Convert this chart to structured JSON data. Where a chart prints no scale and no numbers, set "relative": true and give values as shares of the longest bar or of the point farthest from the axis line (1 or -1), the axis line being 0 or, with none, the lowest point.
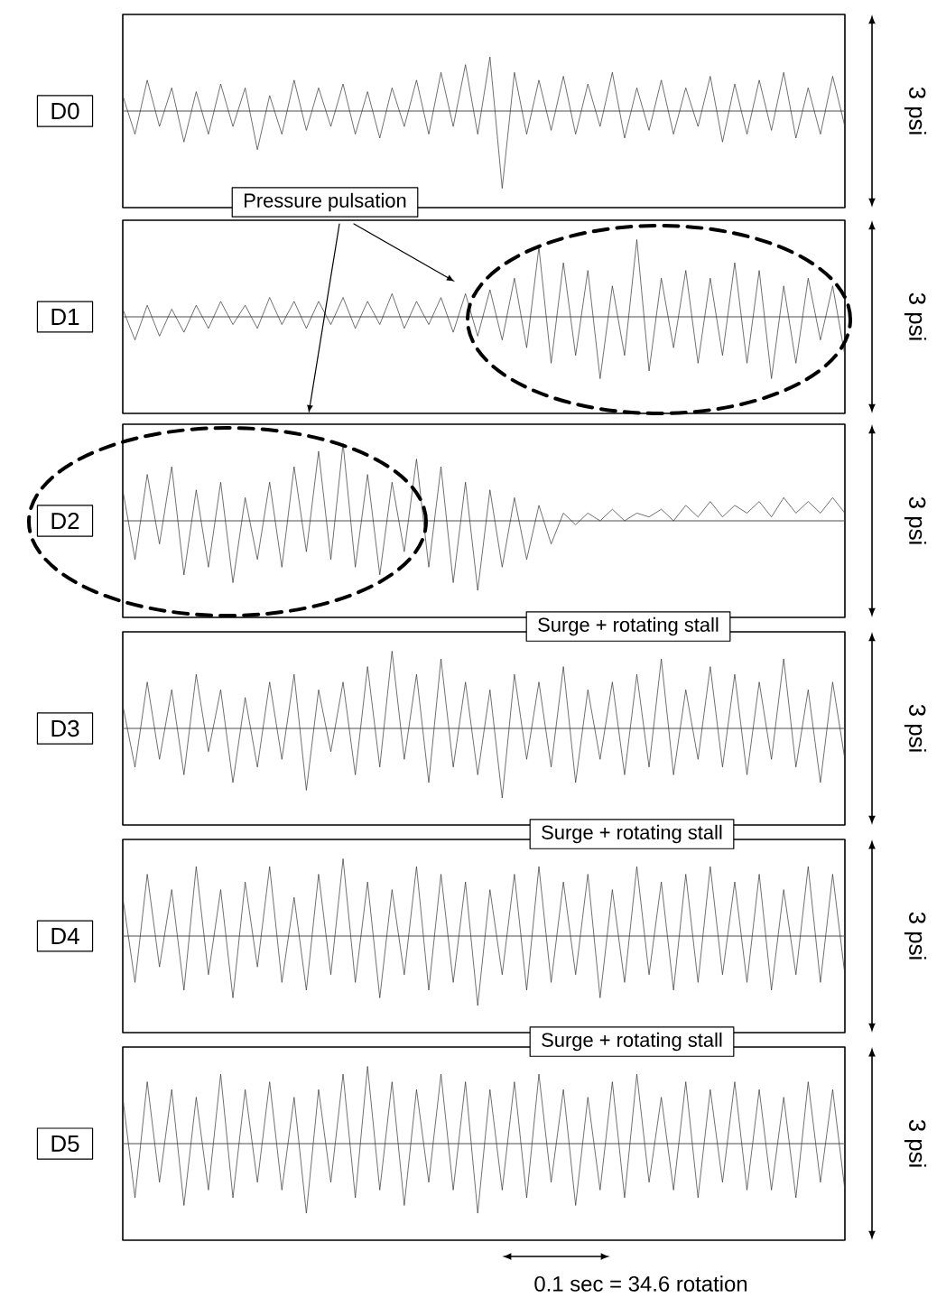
{
  "chart_data": [
    {
      "type": "line",
      "relative": true,
      "title": "D0",
      "y2label": "3 psi",
      "categories": [
        null,
        null,
        null,
        null,
        null,
        null,
        null,
        null,
        null,
        null,
        null,
        null,
        null,
        null,
        null,
        null,
        null,
        null,
        null,
        null,
        null,
        null,
        null,
        null,
        null,
        null,
        null,
        null,
        null,
        null,
        null,
        null,
        null,
        null,
        null,
        null,
        null,
        null,
        null,
        null,
        null,
        null,
        null,
        null,
        null,
        null,
        null,
        null,
        null,
        null,
        null,
        null,
        null,
        null,
        null,
        null,
        null,
        null,
        null,
        null
      ],
      "series": [
        {
          "color": "#333333",
          "values": [
            0.2,
            -0.3,
            0.4,
            -0.2,
            0.3,
            -0.4,
            0.25,
            -0.3,
            0.35,
            -0.2,
            0.3,
            -0.5,
            0.2,
            -0.3,
            0.4,
            -0.25,
            0.3,
            -0.2,
            0.35,
            -0.3,
            0.25,
            -0.35,
            0.3,
            -0.2,
            0.4,
            -0.3,
            0.5,
            -0.2,
            0.6,
            -0.3,
            0.7,
            -1,
            0.5,
            -0.3,
            0.4,
            -0.25,
            0.45,
            -0.3,
            0.35,
            -0.2,
            0.5,
            -0.35,
            0.3,
            -0.25,
            0.4,
            -0.3,
            0.3,
            -0.2,
            0.45,
            -0.4,
            0.35,
            -0.3,
            0.4,
            -0.25,
            0.5,
            -0.35,
            0.3,
            -0.3,
            0.45,
            -0.2
          ]
        }
      ]
    },
    {
      "type": "line",
      "relative": true,
      "title": "D1",
      "y2label": "3 psi",
      "annotations": [
        "Pressure pulsation"
      ],
      "categories": [
        null,
        null,
        null,
        null,
        null,
        null,
        null,
        null,
        null,
        null,
        null,
        null,
        null,
        null,
        null,
        null,
        null,
        null,
        null,
        null,
        null,
        null,
        null,
        null,
        null,
        null,
        null,
        null,
        null,
        null,
        null,
        null,
        null,
        null,
        null,
        null,
        null,
        null,
        null,
        null,
        null,
        null,
        null,
        null,
        null,
        null,
        null,
        null,
        null,
        null,
        null,
        null,
        null,
        null,
        null,
        null,
        null,
        null,
        null,
        null
      ],
      "series": [
        {
          "color": "#333333",
          "values": [
            0.1,
            -0.3,
            0.15,
            -0.25,
            0.1,
            -0.2,
            0.15,
            -0.15,
            0.2,
            -0.1,
            0.15,
            -0.15,
            0.25,
            -0.1,
            0.2,
            -0.15,
            0.2,
            -0.1,
            0.25,
            -0.15,
            0.2,
            -0.1,
            0.3,
            -0.15,
            0.2,
            -0.1,
            0.25,
            -0.2,
            0.3,
            -0.25,
            0.35,
            -0.3,
            0.5,
            -0.4,
            0.9,
            -0.6,
            0.7,
            -0.5,
            0.6,
            -0.8,
            0.4,
            -0.5,
            1,
            -0.7,
            0.5,
            -0.4,
            0.6,
            -0.6,
            0.5,
            -0.5,
            0.7,
            -0.6,
            0.6,
            -0.8,
            0.4,
            -0.6,
            0.5,
            -0.3,
            0.4,
            -0.5
          ]
        }
      ]
    },
    {
      "type": "line",
      "relative": true,
      "title": "D2",
      "y2label": "3 psi",
      "categories": [
        null,
        null,
        null,
        null,
        null,
        null,
        null,
        null,
        null,
        null,
        null,
        null,
        null,
        null,
        null,
        null,
        null,
        null,
        null,
        null,
        null,
        null,
        null,
        null,
        null,
        null,
        null,
        null,
        null,
        null,
        null,
        null,
        null,
        null,
        null,
        null,
        null,
        null,
        null,
        null,
        null,
        null,
        null,
        null,
        null,
        null,
        null,
        null,
        null,
        null,
        null,
        null,
        null,
        null,
        null,
        null,
        null,
        null,
        null,
        null
      ],
      "series": [
        {
          "color": "#333333",
          "values": [
            0.4,
            -0.5,
            0.6,
            -0.3,
            0.7,
            -0.7,
            0.4,
            -0.6,
            0.5,
            -0.8,
            0.3,
            -0.5,
            0.5,
            -0.6,
            0.7,
            -0.4,
            0.9,
            -0.5,
            1,
            -0.6,
            0.6,
            -0.7,
            0.5,
            -0.4,
            0.8,
            -0.6,
            0.7,
            -0.8,
            0.5,
            -0.9,
            0.4,
            -0.6,
            0.3,
            -0.5,
            0.2,
            -0.3,
            0.1,
            -0.05,
            0.1,
            0,
            0.15,
            0,
            0.1,
            0.05,
            0.15,
            0,
            0.2,
            0.05,
            0.25,
            0.05,
            0.2,
            0.1,
            0.25,
            0.05,
            0.3,
            0.1,
            0.25,
            0.1,
            0.3,
            0.1
          ]
        }
      ]
    },
    {
      "type": "line",
      "relative": true,
      "title": "D3",
      "y2label": "3 psi",
      "annotations": [
        "Surge + rotating stall"
      ],
      "categories": [
        null,
        null,
        null,
        null,
        null,
        null,
        null,
        null,
        null,
        null,
        null,
        null,
        null,
        null,
        null,
        null,
        null,
        null,
        null,
        null,
        null,
        null,
        null,
        null,
        null,
        null,
        null,
        null,
        null,
        null,
        null,
        null,
        null,
        null,
        null,
        null,
        null,
        null,
        null,
        null,
        null,
        null,
        null,
        null,
        null,
        null,
        null,
        null,
        null,
        null,
        null,
        null,
        null,
        null,
        null,
        null,
        null,
        null,
        null,
        null
      ],
      "series": [
        {
          "color": "#333333",
          "values": [
            0.3,
            -0.5,
            0.6,
            -0.4,
            0.5,
            -0.6,
            0.7,
            -0.3,
            0.5,
            -0.7,
            0.4,
            -0.5,
            0.6,
            -0.4,
            0.7,
            -0.8,
            0.5,
            -0.3,
            0.6,
            -0.6,
            0.8,
            -0.5,
            1,
            -0.4,
            0.7,
            -0.7,
            0.9,
            -0.5,
            0.6,
            -0.6,
            0.5,
            -0.9,
            0.7,
            -0.4,
            0.6,
            -0.5,
            0.8,
            -0.7,
            0.5,
            -0.4,
            0.6,
            -0.6,
            0.7,
            -0.5,
            0.9,
            -0.6,
            0.5,
            -0.4,
            0.8,
            -0.5,
            0.7,
            -0.6,
            0.6,
            -0.4,
            0.9,
            -0.5,
            0.5,
            -0.7,
            0.6,
            -0.4
          ]
        }
      ]
    },
    {
      "type": "line",
      "relative": true,
      "title": "D4",
      "y2label": "3 psi",
      "annotations": [
        "Surge + rotating stall"
      ],
      "categories": [
        null,
        null,
        null,
        null,
        null,
        null,
        null,
        null,
        null,
        null,
        null,
        null,
        null,
        null,
        null,
        null,
        null,
        null,
        null,
        null,
        null,
        null,
        null,
        null,
        null,
        null,
        null,
        null,
        null,
        null,
        null,
        null,
        null,
        null,
        null,
        null,
        null,
        null,
        null,
        null,
        null,
        null,
        null,
        null,
        null,
        null,
        null,
        null,
        null,
        null,
        null,
        null,
        null,
        null,
        null,
        null,
        null,
        null,
        null,
        null
      ],
      "series": [
        {
          "color": "#333333",
          "values": [
            0.5,
            -0.6,
            0.8,
            -0.4,
            0.6,
            -0.7,
            0.9,
            -0.5,
            0.6,
            -0.8,
            0.7,
            -0.4,
            0.9,
            -0.6,
            0.5,
            -0.7,
            0.8,
            -0.5,
            1,
            -0.6,
            0.7,
            -0.8,
            0.6,
            -0.5,
            0.9,
            -0.7,
            0.8,
            -0.6,
            0.7,
            -0.9,
            0.6,
            -0.5,
            0.8,
            -0.7,
            0.9,
            -0.6,
            0.7,
            -0.5,
            0.8,
            -0.8,
            0.6,
            -0.6,
            0.9,
            -0.5,
            0.7,
            -0.7,
            0.8,
            -0.6,
            0.9,
            -0.5,
            0.7,
            -0.6,
            0.8,
            -0.7,
            0.6,
            -0.5,
            0.9,
            -0.6,
            0.8,
            -0.5
          ]
        }
      ]
    },
    {
      "type": "line",
      "relative": true,
      "title": "D5",
      "y2label": "3 psi",
      "annotations": [
        "Surge + rotating stall",
        "0.1 sec = 34.6 rotation"
      ],
      "categories": [
        null,
        null,
        null,
        null,
        null,
        null,
        null,
        null,
        null,
        null,
        null,
        null,
        null,
        null,
        null,
        null,
        null,
        null,
        null,
        null,
        null,
        null,
        null,
        null,
        null,
        null,
        null,
        null,
        null,
        null,
        null,
        null,
        null,
        null,
        null,
        null,
        null,
        null,
        null,
        null,
        null,
        null,
        null,
        null,
        null,
        null,
        null,
        null,
        null,
        null,
        null,
        null,
        null,
        null,
        null,
        null,
        null,
        null,
        null,
        null
      ],
      "series": [
        {
          "color": "#333333",
          "values": [
            0.6,
            -0.7,
            0.8,
            -0.5,
            0.7,
            -0.8,
            0.6,
            -0.6,
            0.9,
            -0.7,
            0.7,
            -0.5,
            0.8,
            -0.6,
            0.6,
            -0.9,
            0.7,
            -0.5,
            0.9,
            -0.7,
            1,
            -0.6,
            0.8,
            -0.8,
            0.7,
            -0.5,
            0.9,
            -0.6,
            0.8,
            -0.9,
            0.7,
            -0.6,
            0.8,
            -0.7,
            0.9,
            -0.5,
            0.7,
            -0.8,
            0.6,
            -0.6,
            0.8,
            -0.7,
            0.9,
            -0.5,
            0.6,
            -0.6,
            0.8,
            -0.7,
            0.7,
            -0.5,
            0.8,
            -0.6,
            0.7,
            -0.6,
            0.6,
            -0.7,
            0.8,
            -0.5,
            0.7,
            -0.6
          ]
        }
      ]
    }
  ]
}
